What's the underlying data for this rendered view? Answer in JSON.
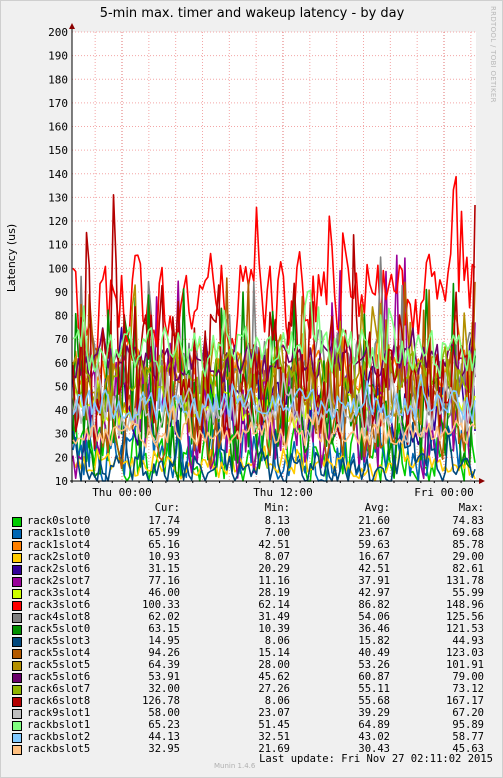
{
  "chart_data": {
    "type": "line",
    "title": "5-min max. timer and wakeup latency - by day",
    "ylabel": "Latency (us)",
    "ylim": [
      10,
      200
    ],
    "yticks": [
      10,
      20,
      30,
      40,
      50,
      60,
      70,
      80,
      90,
      100,
      110,
      120,
      130,
      140,
      150,
      160,
      170,
      180,
      190,
      200
    ],
    "xtick_labels": [
      "Thu 00:00",
      "Thu 12:00",
      "Fri 00:00"
    ],
    "grid": true,
    "side_label": "RRDTOOL / TOBI OETIKER",
    "columns": [
      "Cur:",
      "Min:",
      "Avg:",
      "Max:"
    ],
    "series": [
      {
        "name": "rack0slot0",
        "color": "#00cc00",
        "cur": "17.74",
        "min": "8.13",
        "avg": "21.60",
        "max": "74.83"
      },
      {
        "name": "rack1slot0",
        "color": "#0066b3",
        "cur": "65.99",
        "min": "7.00",
        "avg": "23.67",
        "max": "69.68"
      },
      {
        "name": "rack1slot4",
        "color": "#ff8000",
        "cur": "65.16",
        "min": "42.51",
        "avg": "59.63",
        "max": "85.78"
      },
      {
        "name": "rack2slot0",
        "color": "#ffcc00",
        "cur": "10.93",
        "min": "8.07",
        "avg": "16.67",
        "max": "29.00"
      },
      {
        "name": "rack2slot6",
        "color": "#330099",
        "cur": "31.15",
        "min": "20.29",
        "avg": "42.51",
        "max": "82.61"
      },
      {
        "name": "rack2slot7",
        "color": "#990099",
        "cur": "77.16",
        "min": "11.16",
        "avg": "37.91",
        "max": "131.78"
      },
      {
        "name": "rack3slot4",
        "color": "#ccff00",
        "cur": "46.00",
        "min": "28.19",
        "avg": "42.97",
        "max": "55.99"
      },
      {
        "name": "rack3slot6",
        "color": "#ff0000",
        "cur": "100.33",
        "min": "62.14",
        "avg": "86.82",
        "max": "148.96"
      },
      {
        "name": "rack4slot8",
        "color": "#808080",
        "cur": "62.02",
        "min": "31.49",
        "avg": "54.06",
        "max": "125.56"
      },
      {
        "name": "rack5slot0",
        "color": "#008f00",
        "cur": "63.15",
        "min": "10.39",
        "avg": "36.46",
        "max": "121.53"
      },
      {
        "name": "rack5slot3",
        "color": "#00487d",
        "cur": "14.95",
        "min": "8.06",
        "avg": "15.82",
        "max": "44.93"
      },
      {
        "name": "rack5slot4",
        "color": "#b35a00",
        "cur": "94.26",
        "min": "15.14",
        "avg": "40.49",
        "max": "123.03"
      },
      {
        "name": "rack5slot5",
        "color": "#b38f00",
        "cur": "64.39",
        "min": "28.00",
        "avg": "53.26",
        "max": "101.91"
      },
      {
        "name": "rack5slot6",
        "color": "#6b006b",
        "cur": "53.91",
        "min": "45.62",
        "avg": "60.87",
        "max": "79.00"
      },
      {
        "name": "rack6slot7",
        "color": "#8fb300",
        "cur": "32.00",
        "min": "27.26",
        "avg": "55.11",
        "max": "73.12"
      },
      {
        "name": "rack6slot8",
        "color": "#b30000",
        "cur": "126.78",
        "min": "8.06",
        "avg": "55.68",
        "max": "167.17"
      },
      {
        "name": "rack9slot1",
        "color": "#bebebe",
        "cur": "58.00",
        "min": "23.07",
        "avg": "39.29",
        "max": "67.20"
      },
      {
        "name": "rackbslot1",
        "color": "#80ff80",
        "cur": "65.23",
        "min": "51.45",
        "avg": "64.89",
        "max": "95.89"
      },
      {
        "name": "rackbslot2",
        "color": "#80c9ff",
        "cur": "44.13",
        "min": "32.51",
        "avg": "43.02",
        "max": "58.77"
      },
      {
        "name": "rackbslot5",
        "color": "#ffc080",
        "cur": "32.95",
        "min": "21.69",
        "avg": "30.43",
        "max": "45.63"
      }
    ]
  },
  "footer": {
    "tool": "Munin 1.4.6",
    "last_update": "Last update: Fri Nov 27 02:11:02 2015"
  }
}
